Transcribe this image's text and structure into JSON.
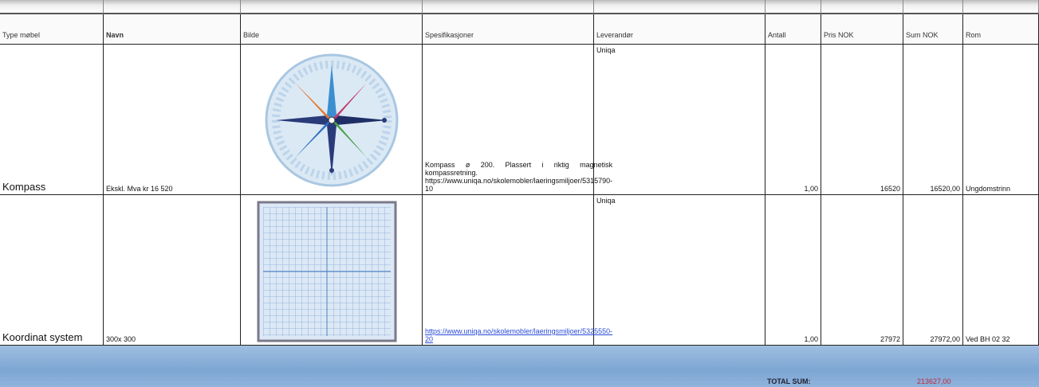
{
  "table": {
    "columns": [
      "Type møbel",
      "Navn",
      "Bilde",
      "Spesifikasjoner",
      "Leverandør",
      "Antall",
      "Pris NOK",
      "Sum NOK",
      "Rom"
    ],
    "rows": [
      {
        "type": "Kompass",
        "name": "Ekskl. Mva kr 16 520",
        "spec": "Kompass ø 200. Plassert i riktig magnetisk kompassretning. https://www.uniqa.no/skolemobler/laeringsmiljoer/5315790-10",
        "supplier": "Uniqa",
        "quantity": "1,00",
        "price": "16520",
        "sum": "16520,00",
        "room": "Ungdomstrinn"
      },
      {
        "type": "Koordinat system",
        "name": "300x 300",
        "spec": "https://www.uniqa.no/skolemobler/laeringsmiljoer/5325550-20",
        "supplier": "Uniqa",
        "quantity": "1,00",
        "price": "27972",
        "sum": "27972,00",
        "room": "Ved BH 02 32"
      }
    ],
    "total": {
      "label": "TOTAL SUM:",
      "value": "213627,00"
    }
  }
}
